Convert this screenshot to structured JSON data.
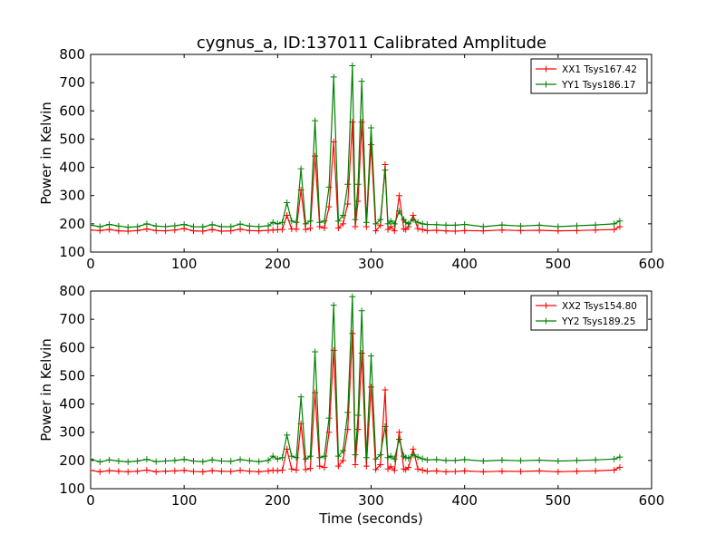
{
  "title": "cygnus_a, ID:137011 Calibrated Amplitude",
  "chart_data": [
    {
      "type": "line",
      "title": "cygnus_a, ID:137011 Calibrated Amplitude",
      "xlabel": "",
      "ylabel": "Power in Kelvin",
      "xlim": [
        0,
        600
      ],
      "ylim": [
        100,
        800
      ],
      "xticks": [
        "0",
        "100",
        "200",
        "300",
        "400",
        "500",
        "600"
      ],
      "yticks": [
        "100",
        "200",
        "300",
        "400",
        "500",
        "600",
        "700",
        "800"
      ],
      "legend_position": "top-right",
      "x": [
        0,
        10,
        20,
        30,
        40,
        50,
        60,
        70,
        80,
        90,
        100,
        110,
        120,
        130,
        140,
        150,
        160,
        170,
        180,
        190,
        195,
        200,
        205,
        210,
        215,
        220,
        225,
        230,
        235,
        240,
        245,
        250,
        255,
        260,
        265,
        270,
        275,
        280,
        283,
        286,
        290,
        295,
        300,
        305,
        310,
        315,
        318,
        321,
        325,
        330,
        335,
        337,
        340,
        345,
        350,
        355,
        360,
        370,
        380,
        390,
        400,
        420,
        440,
        460,
        480,
        500,
        520,
        540,
        560,
        566
      ],
      "series": [
        {
          "name": "XX1 Tsys167.42",
          "color": "#ff0000",
          "values": [
            178,
            176,
            180,
            175,
            174,
            176,
            182,
            176,
            175,
            178,
            183,
            175,
            174,
            180,
            174,
            175,
            181,
            176,
            175,
            177,
            178,
            179,
            180,
            230,
            182,
            181,
            320,
            180,
            184,
            440,
            190,
            185,
            260,
            490,
            185,
            200,
            270,
            560,
            190,
            280,
            560,
            190,
            480,
            175,
            195,
            410,
            180,
            190,
            175,
            300,
            182,
            180,
            190,
            230,
            183,
            180,
            176,
            177,
            175,
            174,
            176,
            175,
            178,
            176,
            177,
            175,
            176,
            178,
            180,
            190
          ]
        },
        {
          "name": "YY1 Tsys186.17",
          "color": "#008000",
          "values": [
            195,
            190,
            198,
            192,
            188,
            190,
            200,
            192,
            190,
            193,
            198,
            190,
            189,
            197,
            190,
            190,
            199,
            192,
            190,
            193,
            205,
            200,
            205,
            275,
            210,
            205,
            395,
            200,
            210,
            565,
            205,
            210,
            330,
            720,
            210,
            230,
            340,
            760,
            215,
            340,
            705,
            205,
            540,
            200,
            215,
            390,
            200,
            210,
            200,
            245,
            215,
            205,
            200,
            215,
            205,
            200,
            198,
            197,
            195,
            195,
            198,
            190,
            196,
            192,
            195,
            190,
            193,
            196,
            200,
            210
          ]
        }
      ]
    },
    {
      "type": "line",
      "xlabel": "Time (seconds)",
      "ylabel": "Power in Kelvin",
      "xlim": [
        0,
        600
      ],
      "ylim": [
        100,
        800
      ],
      "xticks": [
        "0",
        "100",
        "200",
        "300",
        "400",
        "500",
        "600"
      ],
      "yticks": [
        "100",
        "200",
        "300",
        "400",
        "500",
        "600",
        "700",
        "800"
      ],
      "legend_position": "top-right",
      "x": [
        0,
        10,
        20,
        30,
        40,
        50,
        60,
        70,
        80,
        90,
        100,
        110,
        120,
        130,
        140,
        150,
        160,
        170,
        180,
        190,
        195,
        200,
        205,
        210,
        215,
        220,
        225,
        230,
        235,
        240,
        245,
        250,
        255,
        260,
        265,
        270,
        275,
        280,
        283,
        286,
        290,
        295,
        300,
        305,
        310,
        315,
        318,
        321,
        325,
        330,
        335,
        337,
        340,
        345,
        350,
        355,
        360,
        370,
        380,
        390,
        400,
        420,
        440,
        460,
        480,
        500,
        520,
        540,
        560,
        566
      ],
      "series": [
        {
          "name": "XX2 Tsys154.80",
          "color": "#ff0000",
          "values": [
            165,
            160,
            164,
            162,
            160,
            162,
            166,
            160,
            162,
            163,
            165,
            161,
            160,
            164,
            162,
            161,
            165,
            162,
            160,
            163,
            165,
            164,
            166,
            240,
            170,
            166,
            330,
            168,
            172,
            440,
            180,
            175,
            300,
            590,
            180,
            200,
            310,
            650,
            185,
            310,
            580,
            180,
            460,
            168,
            185,
            450,
            170,
            178,
            165,
            300,
            170,
            168,
            175,
            240,
            170,
            166,
            162,
            163,
            160,
            161,
            163,
            160,
            162,
            161,
            163,
            160,
            162,
            163,
            166,
            176
          ]
        },
        {
          "name": "YY2 Tsys189.25",
          "color": "#008000",
          "values": [
            205,
            195,
            202,
            198,
            195,
            198,
            204,
            196,
            198,
            200,
            204,
            198,
            196,
            202,
            198,
            197,
            203,
            199,
            196,
            200,
            215,
            205,
            210,
            290,
            215,
            210,
            425,
            205,
            215,
            585,
            210,
            215,
            350,
            750,
            215,
            235,
            370,
            780,
            220,
            360,
            730,
            210,
            570,
            205,
            220,
            320,
            210,
            215,
            205,
            275,
            215,
            210,
            208,
            220,
            212,
            206,
            202,
            203,
            200,
            200,
            203,
            198,
            201,
            199,
            201,
            198,
            200,
            202,
            205,
            212
          ]
        }
      ]
    }
  ]
}
